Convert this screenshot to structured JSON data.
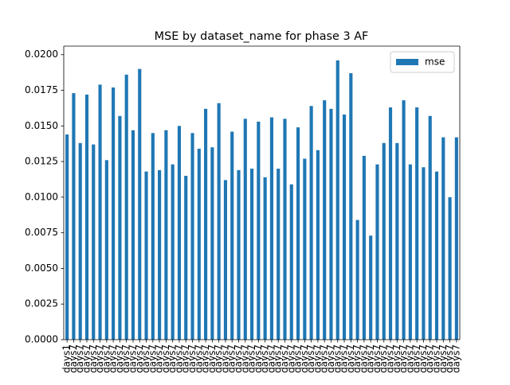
{
  "chart_data": {
    "type": "bar",
    "title": "MSE by dataset_name for phase 3 AF",
    "categories": [
      "days1",
      "days7",
      "days7",
      "days7",
      "days7",
      "days7",
      "days7",
      "days7",
      "days7",
      "days7",
      "days7",
      "days7",
      "days7",
      "days7",
      "days7",
      "days7",
      "days7",
      "days7",
      "days7",
      "days7",
      "days7",
      "days7",
      "days7",
      "days7",
      "days7",
      "days7",
      "days7",
      "days7",
      "days7",
      "days7",
      "days7",
      "days7",
      "days7",
      "days7",
      "days7",
      "days7",
      "days7",
      "days7",
      "days7",
      "days7",
      "days7",
      "days7",
      "days7",
      "days7",
      "days7",
      "days7",
      "days7",
      "days7",
      "days7",
      "days7",
      "days7",
      "days7",
      "days7",
      "days7",
      "days7",
      "days7",
      "days7",
      "days7",
      "days7",
      "days7"
    ],
    "series": [
      {
        "name": "mse",
        "color": "#1f77b4",
        "values": [
          0.0144,
          0.0173,
          0.0138,
          0.0172,
          0.0137,
          0.0179,
          0.0126,
          0.0177,
          0.0157,
          0.0186,
          0.0147,
          0.019,
          0.0118,
          0.0145,
          0.0119,
          0.0147,
          0.0123,
          0.015,
          0.0115,
          0.0145,
          0.0134,
          0.0162,
          0.0135,
          0.0166,
          0.0112,
          0.0146,
          0.0119,
          0.0155,
          0.012,
          0.0153,
          0.0114,
          0.0156,
          0.012,
          0.0155,
          0.0109,
          0.0149,
          0.0127,
          0.0164,
          0.0133,
          0.0168,
          0.0162,
          0.0196,
          0.0158,
          0.0187,
          0.0084,
          0.0129,
          0.0073,
          0.0123,
          0.0138,
          0.0163,
          0.0138,
          0.0168,
          0.0123,
          0.0163,
          0.0121,
          0.0157,
          0.0118,
          0.0142,
          0.01,
          0.0142
        ]
      }
    ],
    "ylim": [
      0,
      0.0206
    ],
    "yticks": [
      {
        "value": 0,
        "label": "0.0000"
      },
      {
        "value": 0.0025,
        "label": "0.0025"
      },
      {
        "value": 0.005,
        "label": "0.0050"
      },
      {
        "value": 0.0075,
        "label": "0.0075"
      },
      {
        "value": 0.01,
        "label": "0.0100"
      },
      {
        "value": 0.0125,
        "label": "0.0125"
      },
      {
        "value": 0.015,
        "label": "0.0150"
      },
      {
        "value": 0.0175,
        "label": "0.0175"
      },
      {
        "value": 0.02,
        "label": "0.0200"
      }
    ],
    "legend": "upper right",
    "grid": false
  }
}
